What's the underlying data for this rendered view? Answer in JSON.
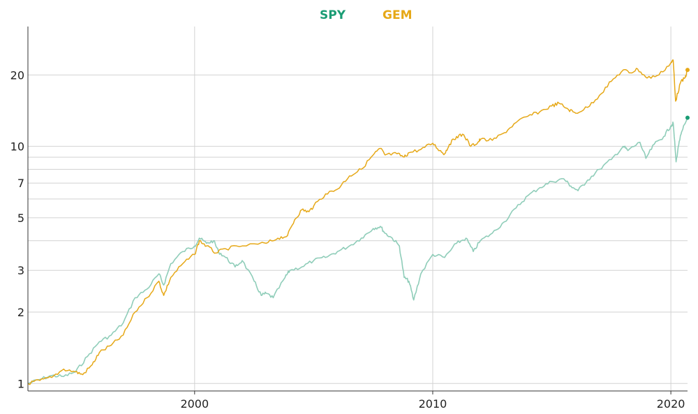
{
  "chart_data": {
    "type": "line",
    "y_scale": "log",
    "xlim": [
      1993.0,
      2020.7
    ],
    "ylim": [
      0.93,
      32
    ],
    "x_ticks": [
      {
        "value": 2000,
        "label": "2000"
      },
      {
        "value": 2010,
        "label": "2010"
      },
      {
        "value": 2020,
        "label": "2020"
      }
    ],
    "y_ticks": [
      {
        "value": 1,
        "label": "1"
      },
      {
        "value": 2,
        "label": "2"
      },
      {
        "value": 3,
        "label": "3"
      },
      {
        "value": 5,
        "label": "5"
      },
      {
        "value": 7,
        "label": "7"
      },
      {
        "value": 10,
        "label": "10"
      },
      {
        "value": 20,
        "label": "20"
      }
    ],
    "y_grid_extra": [
      0.9,
      4,
      6,
      8,
      9
    ],
    "grid": true,
    "legend_position": "top-center",
    "series": [
      {
        "name": "SPY",
        "color": "#1a9c74",
        "line_color": "#8fcdb9",
        "points": [
          [
            1993.0,
            1.0
          ],
          [
            1993.5,
            1.04
          ],
          [
            1994.0,
            1.08
          ],
          [
            1994.5,
            1.07
          ],
          [
            1995.0,
            1.12
          ],
          [
            1995.5,
            1.3
          ],
          [
            1996.0,
            1.5
          ],
          [
            1996.5,
            1.6
          ],
          [
            1997.0,
            1.8
          ],
          [
            1997.5,
            2.3
          ],
          [
            1998.0,
            2.5
          ],
          [
            1998.5,
            2.9
          ],
          [
            1998.7,
            2.6
          ],
          [
            1999.0,
            3.2
          ],
          [
            1999.5,
            3.6
          ],
          [
            2000.0,
            3.8
          ],
          [
            2000.2,
            4.1
          ],
          [
            2000.5,
            3.9
          ],
          [
            2000.8,
            4.0
          ],
          [
            2001.0,
            3.6
          ],
          [
            2001.3,
            3.4
          ],
          [
            2001.7,
            3.1
          ],
          [
            2002.0,
            3.3
          ],
          [
            2002.5,
            2.7
          ],
          [
            2002.8,
            2.35
          ],
          [
            2003.0,
            2.4
          ],
          [
            2003.3,
            2.3
          ],
          [
            2003.8,
            2.8
          ],
          [
            2004.0,
            3.0
          ],
          [
            2004.5,
            3.1
          ],
          [
            2005.0,
            3.3
          ],
          [
            2005.5,
            3.4
          ],
          [
            2006.0,
            3.6
          ],
          [
            2006.5,
            3.8
          ],
          [
            2007.0,
            4.1
          ],
          [
            2007.5,
            4.5
          ],
          [
            2007.8,
            4.6
          ],
          [
            2008.0,
            4.3
          ],
          [
            2008.3,
            4.1
          ],
          [
            2008.6,
            3.8
          ],
          [
            2008.8,
            2.8
          ],
          [
            2009.0,
            2.7
          ],
          [
            2009.2,
            2.25
          ],
          [
            2009.5,
            2.9
          ],
          [
            2010.0,
            3.5
          ],
          [
            2010.5,
            3.4
          ],
          [
            2011.0,
            3.9
          ],
          [
            2011.4,
            4.1
          ],
          [
            2011.7,
            3.6
          ],
          [
            2012.0,
            4.0
          ],
          [
            2012.5,
            4.3
          ],
          [
            2013.0,
            4.8
          ],
          [
            2013.5,
            5.5
          ],
          [
            2014.0,
            6.2
          ],
          [
            2014.5,
            6.7
          ],
          [
            2015.0,
            7.1
          ],
          [
            2015.5,
            7.3
          ],
          [
            2015.8,
            6.8
          ],
          [
            2016.1,
            6.5
          ],
          [
            2016.5,
            7.2
          ],
          [
            2017.0,
            8.0
          ],
          [
            2017.5,
            8.8
          ],
          [
            2018.0,
            10.0
          ],
          [
            2018.2,
            9.6
          ],
          [
            2018.7,
            10.4
          ],
          [
            2018.95,
            8.9
          ],
          [
            2019.3,
            10.2
          ],
          [
            2019.7,
            11.0
          ],
          [
            2020.0,
            12.2
          ],
          [
            2020.1,
            12.5
          ],
          [
            2020.22,
            8.6
          ],
          [
            2020.35,
            10.5
          ],
          [
            2020.5,
            11.8
          ],
          [
            2020.7,
            13.2
          ]
        ]
      },
      {
        "name": "GEM",
        "color": "#e6a817",
        "line_color": "#e6a817",
        "points": [
          [
            1993.0,
            1.0
          ],
          [
            1993.5,
            1.03
          ],
          [
            1994.0,
            1.06
          ],
          [
            1994.5,
            1.15
          ],
          [
            1995.0,
            1.12
          ],
          [
            1995.3,
            1.09
          ],
          [
            1995.7,
            1.2
          ],
          [
            1996.0,
            1.35
          ],
          [
            1996.5,
            1.45
          ],
          [
            1997.0,
            1.6
          ],
          [
            1997.5,
            2.0
          ],
          [
            1998.0,
            2.3
          ],
          [
            1998.5,
            2.7
          ],
          [
            1998.7,
            2.35
          ],
          [
            1999.0,
            2.8
          ],
          [
            1999.5,
            3.2
          ],
          [
            2000.0,
            3.5
          ],
          [
            2000.2,
            4.0
          ],
          [
            2000.5,
            3.8
          ],
          [
            2000.9,
            3.55
          ],
          [
            2001.3,
            3.7
          ],
          [
            2002.0,
            3.8
          ],
          [
            2003.0,
            3.9
          ],
          [
            2003.5,
            4.1
          ],
          [
            2003.9,
            4.2
          ],
          [
            2004.2,
            4.9
          ],
          [
            2004.5,
            5.4
          ],
          [
            2004.8,
            5.3
          ],
          [
            2005.0,
            5.6
          ],
          [
            2005.5,
            6.3
          ],
          [
            2006.0,
            6.6
          ],
          [
            2006.5,
            7.5
          ],
          [
            2007.0,
            8.0
          ],
          [
            2007.5,
            9.2
          ],
          [
            2007.8,
            9.8
          ],
          [
            2008.0,
            9.2
          ],
          [
            2008.5,
            9.3
          ],
          [
            2008.8,
            9.0
          ],
          [
            2009.0,
            9.4
          ],
          [
            2009.5,
            9.7
          ],
          [
            2010.0,
            10.3
          ],
          [
            2010.3,
            9.6
          ],
          [
            2010.5,
            9.3
          ],
          [
            2010.7,
            10.2
          ],
          [
            2011.0,
            11.0
          ],
          [
            2011.3,
            11.2
          ],
          [
            2011.6,
            10.0
          ],
          [
            2011.9,
            10.4
          ],
          [
            2012.0,
            10.7
          ],
          [
            2012.5,
            10.6
          ],
          [
            2013.0,
            11.4
          ],
          [
            2013.5,
            12.6
          ],
          [
            2014.0,
            13.4
          ],
          [
            2014.5,
            14.0
          ],
          [
            2015.0,
            14.8
          ],
          [
            2015.3,
            15.2
          ],
          [
            2015.7,
            14.3
          ],
          [
            2016.0,
            13.8
          ],
          [
            2016.5,
            14.6
          ],
          [
            2017.0,
            16.4
          ],
          [
            2017.5,
            18.8
          ],
          [
            2018.0,
            21.0
          ],
          [
            2018.3,
            20.4
          ],
          [
            2018.6,
            21.2
          ],
          [
            2019.0,
            19.4
          ],
          [
            2019.5,
            20.0
          ],
          [
            2020.0,
            22.5
          ],
          [
            2020.1,
            23.0
          ],
          [
            2020.2,
            15.5
          ],
          [
            2020.4,
            18.5
          ],
          [
            2020.6,
            19.5
          ],
          [
            2020.7,
            21.0
          ]
        ]
      }
    ]
  }
}
